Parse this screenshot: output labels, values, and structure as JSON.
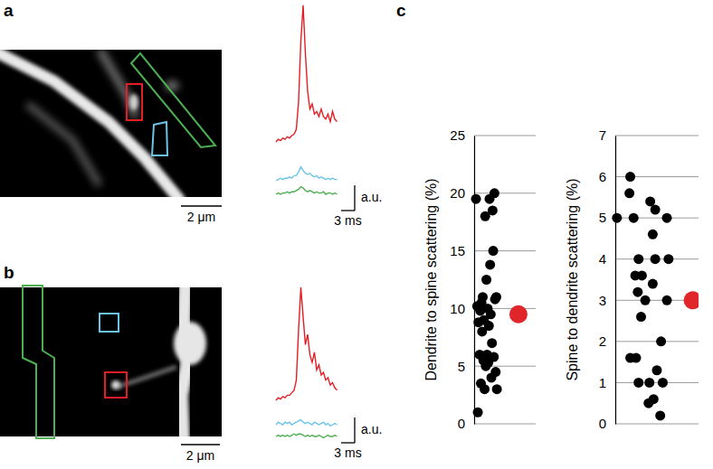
{
  "figure": {
    "time": [
      0,
      0.5,
      1,
      1.5,
      2,
      2.5,
      3,
      3.5,
      4,
      4.5,
      5,
      5.5,
      6,
      6.5,
      7,
      7.5,
      8,
      8.5,
      9,
      9.5,
      10,
      10.5,
      11,
      11.5,
      12,
      12.5,
      13,
      13.5
    ],
    "panels": [
      {
        "label": "a",
        "scale_bar": {
          "value": 2,
          "label": "2 μm"
        },
        "amp_bar": {
          "value": 1,
          "label": "a.u."
        },
        "time_bar": {
          "value": 3,
          "label": "3 ms"
        },
        "traces": [
          {
            "color": "#e31e24",
            "values": [
              0,
              0.1,
              0.05,
              0.15,
              0.1,
              0.2,
              0.15,
              0.25,
              0.3,
              0.5,
              1.6,
              4.0,
              5.4,
              3.5,
              2.0,
              1.3,
              1.5,
              1.1,
              1.2,
              1.0,
              1.3,
              1.0,
              0.9,
              1.1,
              0.8,
              1.2,
              0.9,
              0.8
            ]
          },
          {
            "color": "#6cc5e8",
            "values": [
              0,
              0.05,
              0.1,
              0.05,
              0.1,
              0.1,
              0.15,
              0.1,
              0.2,
              0.2,
              0.35,
              0.55,
              0.4,
              0.3,
              0.25,
              0.3,
              0.2,
              0.15,
              0.2,
              0.1,
              0.15,
              0.1,
              0.05,
              0.1,
              0.05,
              0.1,
              0.05,
              0.05
            ]
          },
          {
            "color": "#4caf50",
            "values": [
              0,
              0.05,
              0,
              0.05,
              0.05,
              0.1,
              0.05,
              0.1,
              0.1,
              0.15,
              0.2,
              0.3,
              0.25,
              0.15,
              0.1,
              0.15,
              0.1,
              0.05,
              0.1,
              0.05,
              0.05,
              0.1,
              0,
              0.05,
              0.05,
              0,
              0.05,
              0
            ]
          }
        ]
      },
      {
        "label": "b",
        "scale_bar": {
          "value": 2,
          "label": "2 μm"
        },
        "amp_bar": {
          "value": 1,
          "label": "a.u."
        },
        "time_bar": {
          "value": 3,
          "label": "3 ms"
        },
        "traces": [
          {
            "color": "#e31e24",
            "values": [
              0,
              0.1,
              0.05,
              0.15,
              0.1,
              0.2,
              0.2,
              0.3,
              0.4,
              0.8,
              2.8,
              4.46,
              3.3,
              2.2,
              2.6,
              1.8,
              1.5,
              1.9,
              1.2,
              1.4,
              1.0,
              1.1,
              0.8,
              0.9,
              0.6,
              0.7,
              0.5,
              0.4
            ]
          },
          {
            "color": "#6cc5e8",
            "values": [
              0,
              0.1,
              0.05,
              0,
              0.1,
              0.05,
              0.1,
              0,
              0.05,
              0.1,
              0.15,
              0.2,
              0.1,
              0.05,
              0.1,
              0.05,
              0,
              0.1,
              0.05,
              0,
              0.05,
              0.1,
              0,
              0.05,
              -0.05,
              0,
              0.05,
              0
            ]
          },
          {
            "color": "#4caf50",
            "values": [
              0,
              0.05,
              0,
              0.05,
              0,
              0.05,
              0,
              0.05,
              0.1,
              0.05,
              0.1,
              0.1,
              0.05,
              0,
              0.05,
              0,
              0.05,
              0,
              0,
              0.05,
              0,
              -0.05,
              0,
              0.05,
              0,
              0,
              0.05,
              0
            ]
          }
        ]
      },
      {
        "label": "c"
      }
    ]
  },
  "chart_data": [
    {
      "type": "scatter",
      "ylabel": "Dendrite to spine scattering (%)",
      "color": "#000000",
      "x": [
        0.03,
        0.25,
        0.33,
        0.18,
        0.3,
        0.31,
        0.26,
        0.2,
        0.14,
        0.36,
        0.34,
        0.12,
        0.05,
        0.22,
        0.1,
        0.27,
        0.16,
        0.07,
        0.24,
        0.13,
        0.29,
        0.09,
        0.21,
        0.32,
        0.15,
        0.23,
        0.19,
        0.35,
        0.28,
        0.11,
        0.17,
        0.37,
        0.06
      ],
      "values": [
        19.5,
        19.5,
        20,
        18,
        18.5,
        15,
        13.8,
        12.5,
        11,
        11,
        10.8,
        10.5,
        10.2,
        10,
        9.8,
        9.5,
        9,
        8.8,
        8.5,
        8,
        7,
        6,
        6,
        5.8,
        5.5,
        5.3,
        5,
        4.5,
        4,
        3.5,
        3,
        3,
        1
      ],
      "mean": {
        "value": 9.5,
        "x": 0.72,
        "color": "#e0262b"
      },
      "xlim": [
        0,
        1
      ],
      "ylim": [
        0,
        25
      ],
      "yticks": [
        0,
        5,
        10,
        15,
        20,
        25
      ],
      "grid": true,
      "tick_labels": "y"
    },
    {
      "type": "scatter",
      "ylabel": "Spine to dendrite scattering (%)",
      "color": "#000000",
      "x": [
        0.18,
        0.17,
        0.42,
        0.02,
        0.22,
        0.62,
        0.48,
        0.45,
        0.28,
        0.48,
        0.64,
        0.24,
        0.32,
        0.45,
        0.27,
        0.36,
        0.62,
        0.31,
        0.55,
        0.18,
        0.25,
        0.5,
        0.28,
        0.41,
        0.57,
        0.46,
        0.4,
        0.54
      ],
      "values": [
        6,
        5.6,
        5.4,
        5,
        5,
        5,
        5.2,
        4.6,
        4,
        4,
        4,
        3.6,
        3.6,
        3.4,
        3.2,
        3,
        3,
        2.6,
        2,
        1.6,
        1.6,
        1.3,
        1,
        1,
        1,
        0.6,
        0.5,
        0.2
      ],
      "mean": {
        "value": 3,
        "x": 0.93,
        "color": "#e0262b"
      },
      "xlim": [
        0,
        1
      ],
      "ylim": [
        0,
        7
      ],
      "yticks": [
        0,
        1,
        2,
        3,
        4,
        5,
        6,
        7
      ],
      "grid": true,
      "tick_labels": "y"
    }
  ]
}
